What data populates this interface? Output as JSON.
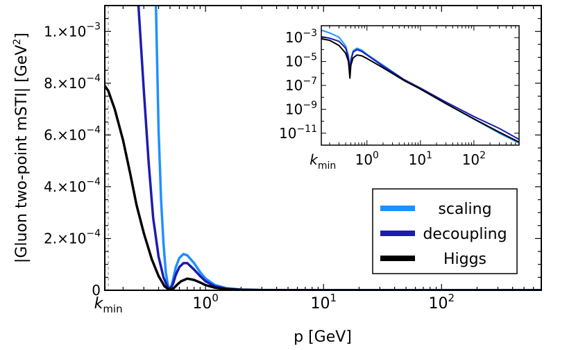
{
  "chart_data": {
    "type": "line",
    "x_scale": "log",
    "xlabel": "p [GeV]",
    "ylabel_main": "|Gluon two-point mSTI| [GeV",
    "ylabel_exp": "2",
    "ylabel_close": "]",
    "xlim": [
      0.14,
      700
    ],
    "ylim": [
      0,
      0.0011
    ],
    "x_ticks": [
      {
        "value": 0.15,
        "base": "k",
        "sub": "min"
      },
      {
        "value": 1,
        "base": "10",
        "exp": "0"
      },
      {
        "value": 10,
        "base": "10",
        "exp": "1"
      },
      {
        "value": 100,
        "base": "10",
        "exp": "2"
      }
    ],
    "y_ticks": [
      {
        "value": 0,
        "mant": "0",
        "exp": ""
      },
      {
        "value": 0.0002,
        "mant": "2.×10",
        "exp": "−4"
      },
      {
        "value": 0.0004,
        "mant": "4.×10",
        "exp": "−4"
      },
      {
        "value": 0.0006,
        "mant": "6.×10",
        "exp": "−4"
      },
      {
        "value": 0.0008,
        "mant": "8.×10",
        "exp": "−4"
      },
      {
        "value": 0.001,
        "mant": "1.×10",
        "exp": "−3"
      }
    ],
    "kmin": 0.15,
    "grid": false,
    "legend_position": "bottom-right",
    "series": [
      {
        "name": "scaling",
        "color": "#1e90ff",
        "points": [
          [
            0.38,
            0.0011
          ],
          [
            0.4,
            0.00062
          ],
          [
            0.42,
            0.00035
          ],
          [
            0.44,
            0.00018
          ],
          [
            0.46,
            7e-05
          ],
          [
            0.48,
            2e-05
          ],
          [
            0.5,
            0.0
          ],
          [
            0.53,
            4e-05
          ],
          [
            0.56,
            9e-05
          ],
          [
            0.6,
            0.000125
          ],
          [
            0.65,
            0.00014
          ],
          [
            0.7,
            0.000135
          ],
          [
            0.8,
            0.000105
          ],
          [
            0.9,
            7e-05
          ],
          [
            1.0,
            4.5e-05
          ],
          [
            1.2,
            2e-05
          ],
          [
            1.5,
            8e-06
          ],
          [
            2.0,
            3e-06
          ],
          [
            3.0,
            1e-06
          ],
          [
            10,
            2e-07
          ],
          [
            100,
            0.0
          ],
          [
            700,
            0.0
          ]
        ]
      },
      {
        "name": "decoupling",
        "color": "#1c1cb0",
        "points": [
          [
            0.27,
            0.0011
          ],
          [
            0.3,
            0.00077
          ],
          [
            0.33,
            0.00049
          ],
          [
            0.36,
            0.00028
          ],
          [
            0.4,
            0.00013
          ],
          [
            0.44,
            5e-05
          ],
          [
            0.48,
            1e-05
          ],
          [
            0.5,
            0.0
          ],
          [
            0.53,
            2.5e-05
          ],
          [
            0.56,
            6e-05
          ],
          [
            0.6,
            9e-05
          ],
          [
            0.65,
            0.000105
          ],
          [
            0.7,
            0.000105
          ],
          [
            0.8,
            8e-05
          ],
          [
            0.9,
            5.5e-05
          ],
          [
            1.0,
            3.5e-05
          ],
          [
            1.2,
            1.5e-05
          ],
          [
            1.5,
            6e-06
          ],
          [
            2.0,
            2e-06
          ],
          [
            3.0,
            8e-07
          ],
          [
            10,
            1e-07
          ],
          [
            100,
            0.0
          ],
          [
            700,
            0.0
          ]
        ]
      },
      {
        "name": "Higgs",
        "color": "#000000",
        "points": [
          [
            0.14,
            0.00079
          ],
          [
            0.15,
            0.00077
          ],
          [
            0.17,
            0.0007
          ],
          [
            0.2,
            0.00058
          ],
          [
            0.23,
            0.00045
          ],
          [
            0.26,
            0.00033
          ],
          [
            0.3,
            0.00022
          ],
          [
            0.35,
            0.00012
          ],
          [
            0.4,
            5.5e-05
          ],
          [
            0.45,
            1.5e-05
          ],
          [
            0.5,
            0.0
          ],
          [
            0.53,
            5e-06
          ],
          [
            0.57,
            2e-05
          ],
          [
            0.62,
            3.5e-05
          ],
          [
            0.7,
            4.5e-05
          ],
          [
            0.8,
            4e-05
          ],
          [
            0.9,
            3e-05
          ],
          [
            1.0,
            2e-05
          ],
          [
            1.2,
            1e-05
          ],
          [
            1.5,
            4e-06
          ],
          [
            2.0,
            1.5e-06
          ],
          [
            3.0,
            5e-07
          ],
          [
            10,
            0.0
          ],
          [
            100,
            0.0
          ],
          [
            700,
            0.0
          ]
        ]
      }
    ],
    "inset": {
      "x_scale": "log",
      "y_scale": "log",
      "xlim": [
        0.14,
        700
      ],
      "ylim": [
        1e-12,
        0.01
      ],
      "x_ticks": [
        {
          "value": 0.15,
          "base": "k",
          "sub": "min"
        },
        {
          "value": 1,
          "base": "10",
          "exp": "0"
        },
        {
          "value": 10,
          "base": "10",
          "exp": "1"
        },
        {
          "value": 100,
          "base": "10",
          "exp": "2"
        }
      ],
      "y_ticks": [
        {
          "value": 0.001,
          "base": "10",
          "exp": "−3"
        },
        {
          "value": 1e-05,
          "base": "10",
          "exp": "−5"
        },
        {
          "value": 1e-07,
          "base": "10",
          "exp": "−7"
        },
        {
          "value": 1e-09,
          "base": "10",
          "exp": "−9"
        },
        {
          "value": 1e-11,
          "base": "10",
          "exp": "−11"
        }
      ],
      "series": [
        {
          "name": "scaling",
          "color": "#1e90ff",
          "points": [
            [
              0.14,
              0.0042
            ],
            [
              0.2,
              0.0025
            ],
            [
              0.3,
              0.0011
            ],
            [
              0.4,
              0.0002
            ],
            [
              0.45,
              3e-05
            ],
            [
              0.48,
              2e-06
            ],
            [
              0.5,
              1.5e-05
            ],
            [
              0.55,
              8e-05
            ],
            [
              0.65,
              0.00013
            ],
            [
              0.8,
              9e-05
            ],
            [
              1.0,
              4e-05
            ],
            [
              2,
              5e-06
            ],
            [
              5,
              3e-07
            ],
            [
              10,
              5e-08
            ],
            [
              30,
              3e-09
            ],
            [
              100,
              1.5e-10
            ],
            [
              300,
              1e-11
            ],
            [
              700,
              1.5e-12
            ]
          ]
        },
        {
          "name": "decoupling",
          "color": "#1c1cb0",
          "points": [
            [
              0.14,
              0.0012
            ],
            [
              0.2,
              0.0009
            ],
            [
              0.3,
              0.0005
            ],
            [
              0.4,
              0.00013
            ],
            [
              0.45,
              2e-05
            ],
            [
              0.48,
              1e-06
            ],
            [
              0.5,
              1.2e-05
            ],
            [
              0.55,
              6e-05
            ],
            [
              0.65,
              0.0001
            ],
            [
              0.8,
              7e-05
            ],
            [
              1.0,
              3.5e-05
            ],
            [
              2,
              4e-06
            ],
            [
              5,
              3e-07
            ],
            [
              10,
              6e-08
            ],
            [
              30,
              4e-09
            ],
            [
              100,
              2.5e-10
            ],
            [
              300,
              2.5e-11
            ],
            [
              700,
              3e-12
            ]
          ]
        },
        {
          "name": "Higgs",
          "color": "#000000",
          "points": [
            [
              0.14,
              0.0008
            ],
            [
              0.2,
              0.0006
            ],
            [
              0.3,
              0.00022
            ],
            [
              0.4,
              5e-05
            ],
            [
              0.45,
              1e-05
            ],
            [
              0.48,
              4e-07
            ],
            [
              0.5,
              5e-06
            ],
            [
              0.55,
              2e-05
            ],
            [
              0.65,
              3.5e-05
            ],
            [
              0.8,
              3e-05
            ],
            [
              1.0,
              1.8e-05
            ],
            [
              2,
              3e-06
            ],
            [
              5,
              2.5e-07
            ],
            [
              10,
              5e-08
            ],
            [
              30,
              3e-09
            ],
            [
              100,
              1.6e-10
            ],
            [
              300,
              1.2e-11
            ],
            [
              700,
              1.8e-12
            ]
          ]
        }
      ]
    }
  }
}
